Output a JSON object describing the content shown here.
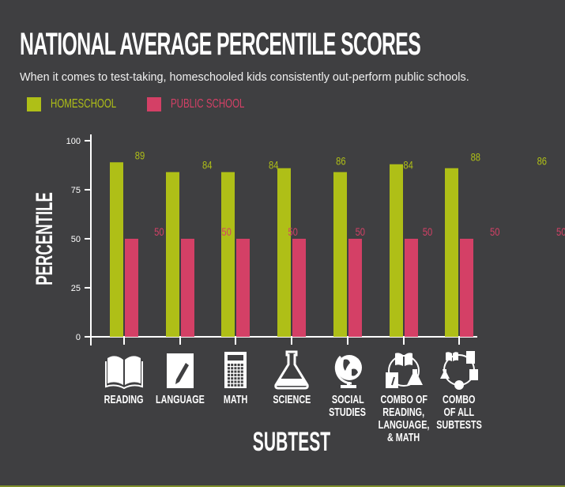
{
  "header": {
    "title": "NATIONAL AVERAGE PERCENTILE SCORES",
    "subtitle": "When it comes to test-taking, homeschooled kids consistently out-perform public schools."
  },
  "legend": [
    {
      "label": "HOMESCHOOL",
      "color": "#afbf17"
    },
    {
      "label": "PUBLIC SCHOOL",
      "color": "#d44066"
    }
  ],
  "axes": {
    "ylabel": "PERCENTILE",
    "xlabel": "SUBTEST",
    "yticks": [
      "0",
      "25",
      "50",
      "75",
      "100"
    ]
  },
  "categories": [
    {
      "label_lines": [
        "READING"
      ],
      "icon": "open-book-icon"
    },
    {
      "label_lines": [
        "LANGUAGE"
      ],
      "icon": "paper-pencil-icon"
    },
    {
      "label_lines": [
        "MATH"
      ],
      "icon": "calculator-icon"
    },
    {
      "label_lines": [
        "SCIENCE"
      ],
      "icon": "flask-icon"
    },
    {
      "label_lines": [
        "SOCIAL",
        "STUDIES"
      ],
      "icon": "globe-icon"
    },
    {
      "label_lines": [
        "COMBO OF",
        "READING,",
        "LANGUAGE,",
        "& MATH"
      ],
      "icon": "combo-three-icon"
    },
    {
      "label_lines": [
        "COMBO",
        "OF ALL",
        "SUBTESTS"
      ],
      "icon": "combo-all-icon"
    }
  ],
  "chart_data": {
    "type": "bar",
    "title": "NATIONAL AVERAGE PERCENTILE SCORES",
    "subtitle": "When it comes to test-taking, homeschooled kids consistently out-perform public schools.",
    "categories": [
      "Reading",
      "Language",
      "Math",
      "Science",
      "Social Studies",
      "Combo of Reading, Language, & Math",
      "Combo of All Subtests"
    ],
    "series": [
      {
        "name": "HOMESCHOOL",
        "color": "#afbf17",
        "values": [
          89,
          84,
          84,
          86,
          84,
          88,
          86
        ]
      },
      {
        "name": "PUBLIC SCHOOL",
        "color": "#d44066",
        "values": [
          50,
          50,
          50,
          50,
          50,
          50,
          50
        ]
      }
    ],
    "xlabel": "SUBTEST",
    "ylabel": "PERCENTILE",
    "ylim": [
      0,
      100
    ],
    "yticks": [
      0,
      25,
      50,
      75,
      100
    ],
    "grid": false,
    "legend_position": "top-left",
    "data_labels": true
  },
  "colors": {
    "background": "#3f3f41",
    "axis": "#ffffff",
    "homeschool": "#afbf17",
    "public": "#d44066"
  }
}
